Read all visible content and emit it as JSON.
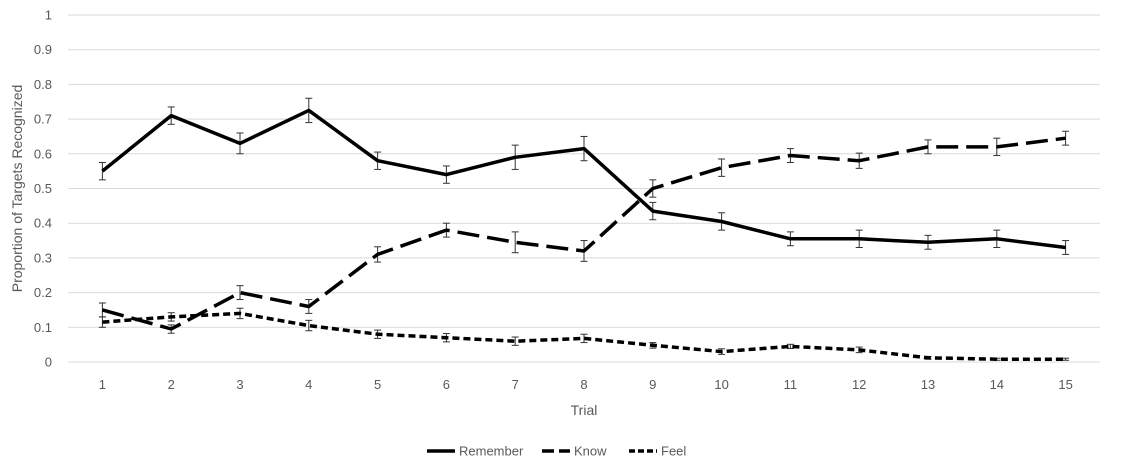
{
  "chart_data": {
    "type": "line",
    "title": "",
    "xlabel": "Trial",
    "ylabel": "Proportion of Targets Recognized",
    "x": [
      1,
      2,
      3,
      4,
      5,
      6,
      7,
      8,
      9,
      10,
      11,
      12,
      13,
      14,
      15
    ],
    "x_tick_labels": [
      "1",
      "2",
      "3",
      "4",
      "5",
      "6",
      "7",
      "8",
      "9",
      "10",
      "11",
      "12",
      "13",
      "14",
      "15"
    ],
    "ylim": [
      0,
      1
    ],
    "y_tick_labels": [
      "0",
      "0.1",
      "0.2",
      "0.3",
      "0.4",
      "0.5",
      "0.6",
      "0.7",
      "0.8",
      "0.9",
      "1"
    ],
    "y_ticks": [
      0,
      0.1,
      0.2,
      0.3,
      0.4,
      0.5,
      0.6,
      0.7,
      0.8,
      0.9,
      1
    ],
    "grid": "horizontal",
    "legend_position": "bottom",
    "series": [
      {
        "name": "Remember",
        "style": "solid",
        "color": "#000000",
        "values": [
          0.55,
          0.71,
          0.63,
          0.725,
          0.58,
          0.54,
          0.59,
          0.615,
          0.435,
          0.405,
          0.355,
          0.355,
          0.345,
          0.355,
          0.33
        ],
        "errors": [
          0.025,
          0.025,
          0.03,
          0.035,
          0.025,
          0.025,
          0.035,
          0.035,
          0.025,
          0.025,
          0.02,
          0.025,
          0.02,
          0.025,
          0.02
        ]
      },
      {
        "name": "Know",
        "style": "long-dash",
        "color": "#000000",
        "values": [
          0.15,
          0.095,
          0.2,
          0.16,
          0.31,
          0.38,
          0.345,
          0.32,
          0.5,
          0.56,
          0.595,
          0.58,
          0.62,
          0.62,
          0.645
        ],
        "errors": [
          0.02,
          0.012,
          0.02,
          0.02,
          0.022,
          0.02,
          0.03,
          0.03,
          0.025,
          0.025,
          0.02,
          0.022,
          0.02,
          0.025,
          0.02
        ]
      },
      {
        "name": "Feel",
        "style": "short-dash",
        "color": "#000000",
        "values": [
          0.115,
          0.13,
          0.14,
          0.105,
          0.08,
          0.07,
          0.06,
          0.068,
          0.048,
          0.03,
          0.045,
          0.035,
          0.012,
          0.008,
          0.008
        ],
        "errors": [
          0.015,
          0.012,
          0.015,
          0.015,
          0.012,
          0.012,
          0.012,
          0.012,
          0.008,
          0.008,
          0.006,
          0.008,
          0.004,
          0.003,
          0.003
        ]
      }
    ]
  }
}
